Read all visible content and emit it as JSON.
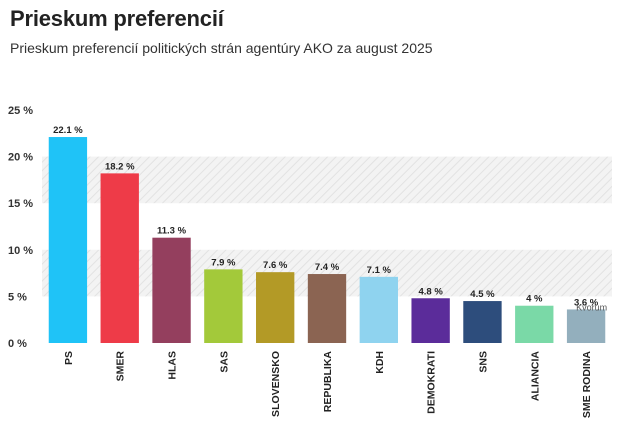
{
  "chart_data": {
    "type": "bar",
    "title": "Prieskum preferencií",
    "subtitle": "Prieskum preferencií politických strán agentúry AKO za august 2025",
    "categories": [
      "PS",
      "SMER",
      "HLAS",
      "SAS",
      "SLOVENSKO",
      "REPUBLIKA",
      "KDH",
      "DEMOKRATI",
      "SNS",
      "ALIANCIA",
      "SME RODINA"
    ],
    "values": [
      22.1,
      18.2,
      11.3,
      7.9,
      7.6,
      7.4,
      7.1,
      4.8,
      4.5,
      4,
      3.6
    ],
    "data_labels": [
      "22.1 %",
      "18.2 %",
      "11.3 %",
      "7.9 %",
      "7.6 %",
      "7.4 %",
      "7.1 %",
      "4.8 %",
      "4.5 %",
      "4 %",
      "3.6 %"
    ],
    "colors": [
      "#1fc3f7",
      "#ee3b48",
      "#943f5e",
      "#a3c93a",
      "#b39a26",
      "#8b6452",
      "#8fd3ef",
      "#5b2c9a",
      "#2d4d7c",
      "#7ad9a7",
      "#93afbd"
    ],
    "ylim": [
      0,
      25
    ],
    "yticks": [
      0,
      5,
      10,
      15,
      20,
      25
    ],
    "ytick_labels": [
      "0 %",
      "5 %",
      "10 %",
      "15 %",
      "20 %",
      "25 %"
    ],
    "xlabel": "",
    "ylabel": "",
    "grid": "horizontal hatched bands",
    "watermark": "Kvorum"
  }
}
